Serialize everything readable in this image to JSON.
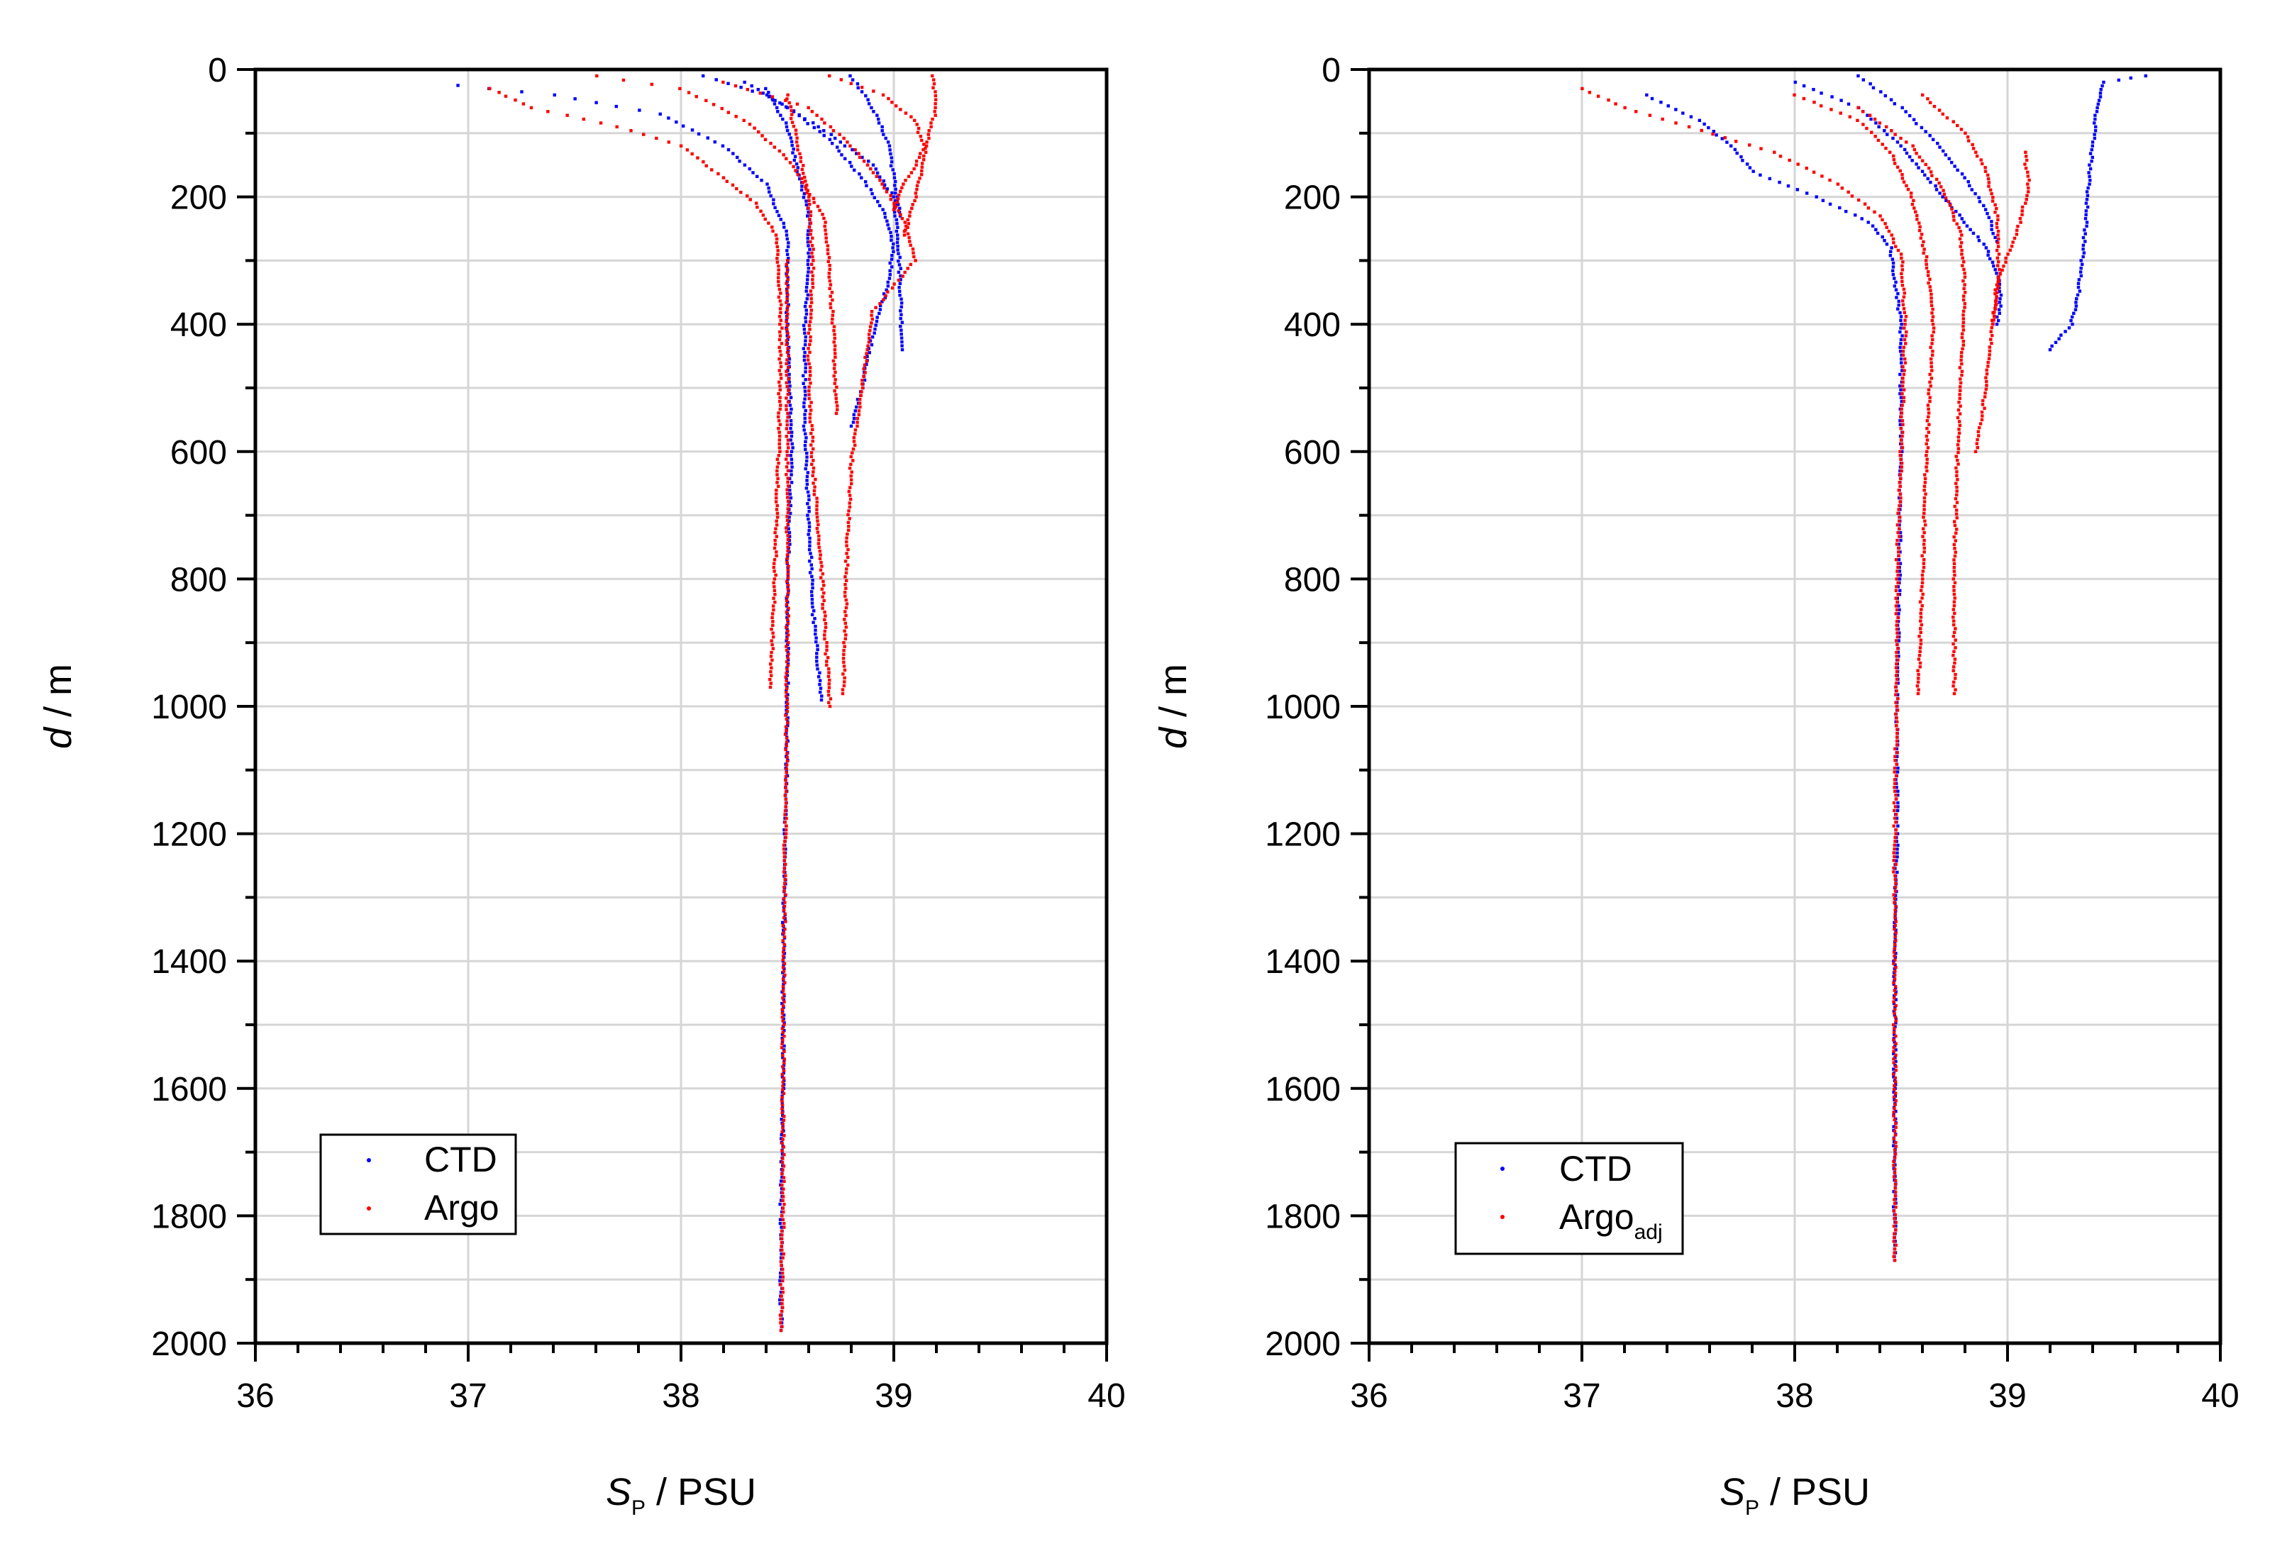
{
  "chart_data": [
    {
      "type": "scatter",
      "panel": "left",
      "xlabel_symbol": "S",
      "xlabel_subscript": "P",
      "xlabel_unit": " / PSU",
      "ylabel_symbol": "d",
      "ylabel_unit": " / m",
      "xlim": [
        36,
        40
      ],
      "ylim": [
        0,
        2000
      ],
      "y_inverted": true,
      "x_ticks": [
        36,
        37,
        38,
        39,
        40
      ],
      "x_tick_labels": [
        "36",
        "37",
        "38",
        "39",
        "40"
      ],
      "y_ticks": [
        0,
        200,
        400,
        600,
        800,
        1000,
        1200,
        1400,
        1600,
        1800,
        2000
      ],
      "y_tick_labels": [
        "0",
        "200",
        "400",
        "600",
        "800",
        "1000",
        "1200",
        "1400",
        "1600",
        "1800",
        "2000"
      ],
      "grid": true,
      "legend_position": "bottom-left",
      "series": [
        {
          "name": "CTD",
          "color": "#0000ff",
          "marker": "dot",
          "profiles": [
            [
              [
                36.95,
                25
              ],
              [
                37.4,
                40
              ],
              [
                37.9,
                70
              ],
              [
                38.2,
                120
              ],
              [
                38.4,
                180
              ],
              [
                38.5,
                260
              ],
              [
                38.5,
                400
              ],
              [
                38.52,
                600
              ],
              [
                38.5,
                800
              ],
              [
                38.5,
                1000
              ],
              [
                38.49,
                1200
              ],
              [
                38.48,
                1400
              ],
              [
                38.48,
                1600
              ],
              [
                38.47,
                1800
              ],
              [
                38.47,
                1980
              ]
            ],
            [
              [
                38.1,
                10
              ],
              [
                38.4,
                40
              ],
              [
                38.65,
                90
              ],
              [
                38.9,
                150
              ],
              [
                39.0,
                200
              ],
              [
                39.02,
                260
              ],
              [
                39.03,
                330
              ],
              [
                39.04,
                440
              ]
            ],
            [
              [
                38.8,
                10
              ],
              [
                38.9,
                60
              ],
              [
                38.98,
                120
              ],
              [
                39.0,
                170
              ],
              [
                39.03,
                230
              ]
            ],
            [
              [
                38.3,
                20
              ],
              [
                38.5,
                60
              ],
              [
                38.7,
                110
              ],
              [
                38.85,
                170
              ],
              [
                38.95,
                220
              ],
              [
                39.0,
                280
              ],
              [
                38.97,
                340
              ],
              [
                38.9,
                420
              ],
              [
                38.85,
                500
              ],
              [
                38.8,
                560
              ]
            ],
            [
              [
                38.4,
                30
              ],
              [
                38.5,
                90
              ],
              [
                38.55,
                160
              ],
              [
                38.6,
                230
              ],
              [
                38.6,
                300
              ],
              [
                38.58,
                420
              ],
              [
                38.58,
                560
              ],
              [
                38.6,
                700
              ],
              [
                38.62,
                850
              ],
              [
                38.66,
                990
              ]
            ]
          ]
        },
        {
          "name": "Argo",
          "color": "#ff0000",
          "marker": "dot",
          "profiles": [
            [
              [
                37.1,
                30
              ],
              [
                37.3,
                60
              ],
              [
                37.7,
                90
              ],
              [
                38.0,
                120
              ],
              [
                38.2,
                170
              ],
              [
                38.35,
                210
              ],
              [
                38.45,
                260
              ],
              [
                38.47,
                400
              ],
              [
                38.46,
                600
              ],
              [
                38.44,
                800
              ],
              [
                38.42,
                970
              ]
            ],
            [
              [
                37.6,
                10
              ],
              [
                38.0,
                30
              ],
              [
                38.3,
                80
              ],
              [
                38.5,
                140
              ],
              [
                38.6,
                190
              ],
              [
                38.68,
                240
              ],
              [
                38.7,
                320
              ],
              [
                38.72,
                440
              ],
              [
                38.73,
                540
              ]
            ],
            [
              [
                38.2,
                20
              ],
              [
                38.6,
                60
              ],
              [
                38.8,
                120
              ],
              [
                38.95,
                180
              ],
              [
                39.05,
                240
              ],
              [
                39.1,
                300
              ],
              [
                38.9,
                380
              ],
              [
                38.85,
                500
              ],
              [
                38.8,
                620
              ],
              [
                38.78,
                760
              ],
              [
                38.77,
                900
              ],
              [
                38.76,
                980
              ]
            ],
            [
              [
                38.7,
                10
              ],
              [
                38.95,
                40
              ],
              [
                39.1,
                80
              ],
              [
                39.15,
                130
              ],
              [
                39.1,
                200
              ],
              [
                39.05,
                260
              ]
            ],
            [
              [
                39.18,
                10
              ],
              [
                39.2,
                60
              ],
              [
                39.15,
                120
              ],
              [
                39.05,
                180
              ],
              [
                39.0,
                220
              ]
            ],
            [
              [
                38.5,
                40
              ],
              [
                38.55,
                120
              ],
              [
                38.6,
                200
              ],
              [
                38.62,
                300
              ],
              [
                38.6,
                450
              ],
              [
                38.62,
                620
              ],
              [
                38.66,
                780
              ],
              [
                38.68,
                900
              ],
              [
                38.7,
                1000
              ]
            ],
            [
              [
                38.5,
                300
              ],
              [
                38.5,
                600
              ],
              [
                38.5,
                900
              ],
              [
                38.49,
                1200
              ],
              [
                38.48,
                1500
              ],
              [
                38.48,
                1800
              ],
              [
                38.47,
                1980
              ]
            ]
          ]
        }
      ]
    },
    {
      "type": "scatter",
      "panel": "right",
      "xlabel_symbol": "S",
      "xlabel_subscript": "P",
      "xlabel_unit": " / PSU",
      "ylabel_symbol": "d",
      "ylabel_unit": " / m",
      "xlim": [
        36,
        40
      ],
      "ylim": [
        0,
        2000
      ],
      "y_inverted": true,
      "x_ticks": [
        36,
        37,
        38,
        39,
        40
      ],
      "x_tick_labels": [
        "36",
        "37",
        "38",
        "39",
        "40"
      ],
      "y_ticks": [
        0,
        200,
        400,
        600,
        800,
        1000,
        1200,
        1400,
        1600,
        1800,
        2000
      ],
      "y_tick_labels": [
        "0",
        "200",
        "400",
        "600",
        "800",
        "1000",
        "1200",
        "1400",
        "1600",
        "1800",
        "2000"
      ],
      "grid": true,
      "legend_position": "bottom-left",
      "series": [
        {
          "name": "CTD",
          "color": "#0000ff",
          "marker": "dot",
          "profiles": [
            [
              [
                39.65,
                10
              ],
              [
                39.45,
                20
              ],
              [
                39.42,
                60
              ],
              [
                39.4,
                120
              ],
              [
                39.38,
                180
              ],
              [
                39.37,
                240
              ],
              [
                39.35,
                300
              ],
              [
                39.33,
                360
              ],
              [
                39.3,
                400
              ],
              [
                39.2,
                440
              ]
            ],
            [
              [
                37.3,
                40
              ],
              [
                37.55,
                80
              ],
              [
                37.7,
                120
              ],
              [
                37.8,
                160
              ],
              [
                38.1,
                200
              ],
              [
                38.35,
                240
              ],
              [
                38.45,
                280
              ],
              [
                38.5,
                400
              ],
              [
                38.5,
                600
              ],
              [
                38.49,
                800
              ],
              [
                38.48,
                1000
              ],
              [
                38.48,
                1200
              ],
              [
                38.47,
                1400
              ],
              [
                38.47,
                1600
              ],
              [
                38.47,
                1870
              ]
            ],
            [
              [
                38.0,
                20
              ],
              [
                38.3,
                60
              ],
              [
                38.5,
                120
              ],
              [
                38.6,
                160
              ],
              [
                38.7,
                200
              ],
              [
                38.8,
                240
              ],
              [
                38.9,
                280
              ],
              [
                38.95,
                320
              ],
              [
                38.97,
                360
              ],
              [
                38.95,
                400
              ]
            ],
            [
              [
                38.3,
                10
              ],
              [
                38.5,
                60
              ],
              [
                38.65,
                110
              ],
              [
                38.8,
                170
              ],
              [
                38.9,
                220
              ],
              [
                38.95,
                270
              ]
            ]
          ]
        },
        {
          "name": "Argoadj",
          "color": "#ff0000",
          "marker": "dot",
          "profiles": [
            [
              [
                37.0,
                30
              ],
              [
                37.2,
                60
              ],
              [
                37.5,
                90
              ],
              [
                37.9,
                130
              ],
              [
                38.2,
                180
              ],
              [
                38.4,
                230
              ],
              [
                38.5,
                290
              ],
              [
                38.52,
                400
              ],
              [
                38.5,
                600
              ],
              [
                38.48,
                800
              ],
              [
                38.48,
                1000
              ],
              [
                38.47,
                1200
              ],
              [
                38.47,
                1500
              ],
              [
                38.47,
                1870
              ]
            ],
            [
              [
                38.0,
                40
              ],
              [
                38.3,
                80
              ],
              [
                38.45,
                130
              ],
              [
                38.55,
                200
              ],
              [
                38.62,
                300
              ],
              [
                38.65,
                400
              ],
              [
                38.62,
                600
              ],
              [
                38.6,
                800
              ],
              [
                38.58,
                980
              ]
            ],
            [
              [
                38.3,
                60
              ],
              [
                38.55,
                120
              ],
              [
                38.7,
                190
              ],
              [
                38.78,
                260
              ],
              [
                38.8,
                350
              ],
              [
                38.78,
                480
              ],
              [
                38.76,
                650
              ],
              [
                38.75,
                800
              ],
              [
                38.75,
                980
              ]
            ],
            [
              [
                39.08,
                130
              ],
              [
                39.1,
                180
              ],
              [
                39.06,
                240
              ],
              [
                39.0,
                290
              ],
              [
                38.95,
                340
              ],
              [
                38.93,
                400
              ]
            ],
            [
              [
                38.6,
                40
              ],
              [
                38.8,
                100
              ],
              [
                38.9,
                160
              ],
              [
                38.95,
                230
              ],
              [
                38.96,
                320
              ],
              [
                38.92,
                430
              ],
              [
                38.88,
                550
              ],
              [
                38.85,
                600
              ]
            ]
          ]
        }
      ]
    }
  ],
  "legends": [
    {
      "entries": [
        {
          "label": "CTD",
          "color": "#0000ff"
        },
        {
          "label": "Argo",
          "color": "#ff0000"
        }
      ]
    },
    {
      "entries": [
        {
          "label": "CTD",
          "color": "#0000ff"
        },
        {
          "label": "Argo",
          "sub": "adj",
          "color": "#ff0000"
        }
      ]
    }
  ]
}
